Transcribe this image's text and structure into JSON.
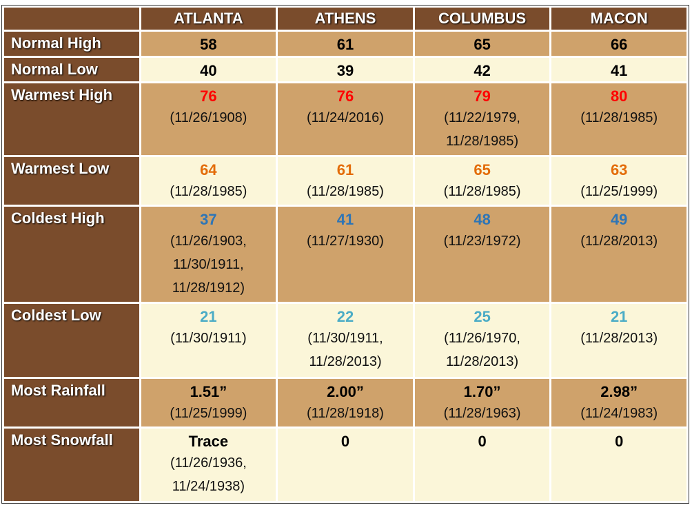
{
  "table": {
    "corner": "",
    "columns": [
      "ATLANTA",
      "ATHENS",
      "COLUMBUS",
      "MACON"
    ],
    "rows": [
      {
        "label": "Normal High",
        "cells": [
          {
            "value": 58,
            "dates": []
          },
          {
            "value": 61,
            "dates": []
          },
          {
            "value": 65,
            "dates": []
          },
          {
            "value": 66,
            "dates": []
          }
        ]
      },
      {
        "label": "Normal Low",
        "cells": [
          {
            "value": 40,
            "dates": []
          },
          {
            "value": 39,
            "dates": []
          },
          {
            "value": 42,
            "dates": []
          },
          {
            "value": 41,
            "dates": []
          }
        ]
      },
      {
        "label": "Warmest High",
        "color": "#ff0000",
        "cells": [
          {
            "value": 76,
            "dates": [
              "(11/26/1908)"
            ]
          },
          {
            "value": 76,
            "dates": [
              "(11/24/2016)"
            ]
          },
          {
            "value": 79,
            "dates": [
              "(11/22/1979,",
              "11/28/1985)"
            ]
          },
          {
            "value": 80,
            "dates": [
              "(11/28/1985)"
            ]
          }
        ]
      },
      {
        "label": "Warmest Low",
        "color": "#e36c09",
        "cells": [
          {
            "value": 64,
            "dates": [
              "(11/28/1985)"
            ]
          },
          {
            "value": 61,
            "dates": [
              "(11/28/1985)"
            ]
          },
          {
            "value": 65,
            "dates": [
              "(11/28/1985)"
            ]
          },
          {
            "value": 63,
            "dates": [
              "(11/25/1999)"
            ]
          }
        ]
      },
      {
        "label": "Coldest High",
        "color": "#2e75b6",
        "cells": [
          {
            "value": 37,
            "dates": [
              "(11/26/1903,",
              "11/30/1911,",
              "11/28/1912)"
            ]
          },
          {
            "value": 41,
            "dates": [
              "(11/27/1930)"
            ]
          },
          {
            "value": 48,
            "dates": [
              "(11/23/1972)"
            ]
          },
          {
            "value": 49,
            "dates": [
              "(11/28/2013)"
            ]
          }
        ]
      },
      {
        "label": "Coldest Low",
        "color": "#4bacc6",
        "cells": [
          {
            "value": 21,
            "dates": [
              "(11/30/1911)"
            ]
          },
          {
            "value": 22,
            "dates": [
              "(11/30/1911,",
              "11/28/2013)"
            ]
          },
          {
            "value": 25,
            "dates": [
              "(11/26/1970,",
              "11/28/2013)"
            ]
          },
          {
            "value": 21,
            "dates": [
              "(11/28/2013)"
            ]
          }
        ]
      },
      {
        "label": "Most Rainfall",
        "cells": [
          {
            "value": "1.51”",
            "dates": [
              "(11/25/1999)"
            ]
          },
          {
            "value": "2.00”",
            "dates": [
              "(11/28/1918)"
            ]
          },
          {
            "value": "1.70”",
            "dates": [
              "(11/28/1963)"
            ]
          },
          {
            "value": "2.98”",
            "dates": [
              "(11/24/1983)"
            ]
          }
        ]
      },
      {
        "label": "Most Snowfall",
        "cells": [
          {
            "value": "Trace",
            "dates": [
              "(11/26/1936,",
              "11/24/1938)"
            ]
          },
          {
            "value": 0,
            "dates": []
          },
          {
            "value": 0,
            "dates": []
          },
          {
            "value": 0,
            "dates": []
          }
        ]
      }
    ]
  }
}
